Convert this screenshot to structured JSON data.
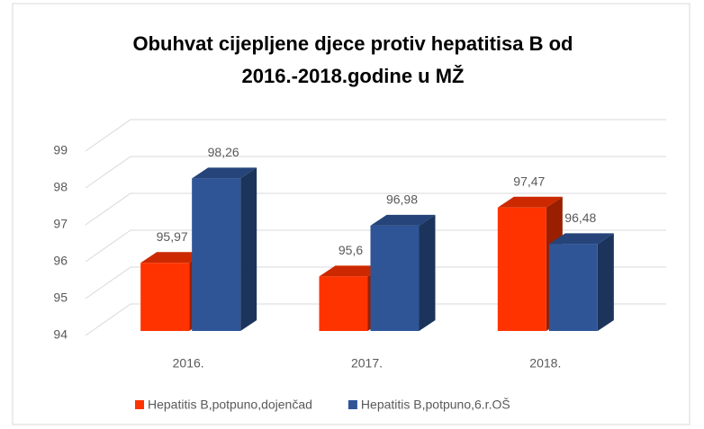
{
  "chart_data": {
    "type": "bar3d",
    "title": [
      "Obuhvat cijepljene djece protiv hepatitisa B od",
      "2016.-2018.godine u MŽ"
    ],
    "categories": [
      "2016.",
      "2017.",
      "2018."
    ],
    "series": [
      {
        "name": "Hepatitis B,potpuno,dojenčad",
        "color": "#ff3300",
        "values": [
          95.97,
          95.6,
          97.47
        ],
        "value_labels": [
          "95,97",
          "95,6",
          "97,47"
        ]
      },
      {
        "name": "Hepatitis B,potpuno,6.r.OŠ",
        "color": "#2f5597",
        "values": [
          98.26,
          96.98,
          96.48
        ],
        "value_labels": [
          "98,26",
          "96,98",
          "96,48"
        ]
      }
    ],
    "ylim": [
      94,
      99
    ],
    "yticks": [
      94,
      95,
      96,
      97,
      98,
      99
    ],
    "grid": true,
    "legend": "bottom"
  }
}
